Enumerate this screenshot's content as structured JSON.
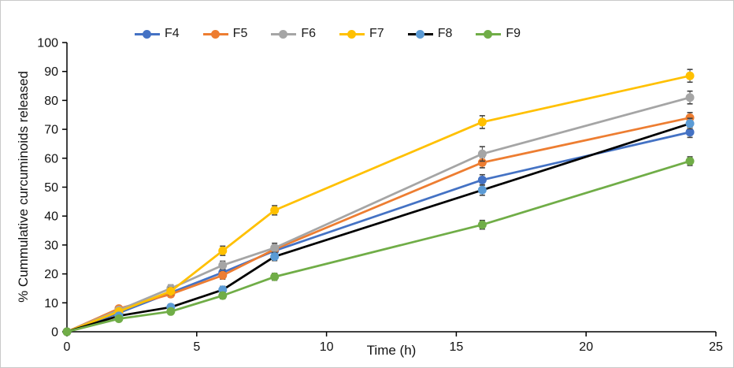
{
  "chart_data": {
    "type": "line",
    "title": "",
    "xlabel": "Time (h)",
    "ylabel": "% Cummulative curcuminoids released",
    "x": [
      0,
      2,
      4,
      6,
      8,
      16,
      24
    ],
    "xlim": [
      0,
      25
    ],
    "ylim": [
      0,
      100
    ],
    "x_ticks": [
      0,
      5,
      10,
      15,
      20,
      25
    ],
    "y_ticks": [
      0,
      10,
      20,
      30,
      40,
      50,
      60,
      70,
      80,
      90,
      100
    ],
    "grid": "off",
    "legend_position": "top",
    "axis_color": "#000000",
    "error_bar_color": "#404040",
    "series": [
      {
        "name": "F4",
        "line_color": "#4472C4",
        "marker_color": "#4472C4",
        "values": [
          0,
          6.5,
          13.5,
          20.5,
          28,
          52.5,
          69
        ],
        "errors": [
          0,
          0.7,
          1.0,
          1.2,
          1.3,
          1.8,
          1.8
        ]
      },
      {
        "name": "F5",
        "line_color": "#ED7D31",
        "marker_color": "#ED7D31",
        "values": [
          0,
          8,
          13,
          19.5,
          28.5,
          58.5,
          74
        ],
        "errors": [
          0,
          0.7,
          1.0,
          1.3,
          1.4,
          1.8,
          1.8
        ]
      },
      {
        "name": "F6",
        "line_color": "#A5A5A5",
        "marker_color": "#A5A5A5",
        "values": [
          0,
          7.5,
          15,
          23,
          29,
          61.5,
          81
        ],
        "errors": [
          0,
          0.7,
          1.2,
          1.4,
          1.6,
          2.5,
          2.2
        ]
      },
      {
        "name": "F7",
        "line_color": "#FFC000",
        "marker_color": "#FFC000",
        "values": [
          0,
          7,
          14,
          28,
          42,
          72.5,
          88.5
        ],
        "errors": [
          0,
          0.7,
          1.2,
          1.6,
          1.6,
          2.2,
          2.2
        ]
      },
      {
        "name": "F8",
        "line_color": "#000000",
        "marker_color": "#5B9BD5",
        "values": [
          0,
          5.5,
          8.5,
          14.5,
          26,
          49,
          72
        ],
        "errors": [
          0,
          0.7,
          1.0,
          1.2,
          1.4,
          1.8,
          1.8
        ]
      },
      {
        "name": "F9",
        "line_color": "#70AD47",
        "marker_color": "#70AD47",
        "values": [
          0,
          4.5,
          7,
          12.5,
          19,
          37,
          59
        ],
        "errors": [
          0,
          0.6,
          0.9,
          1.1,
          1.2,
          1.5,
          1.5
        ]
      }
    ]
  }
}
